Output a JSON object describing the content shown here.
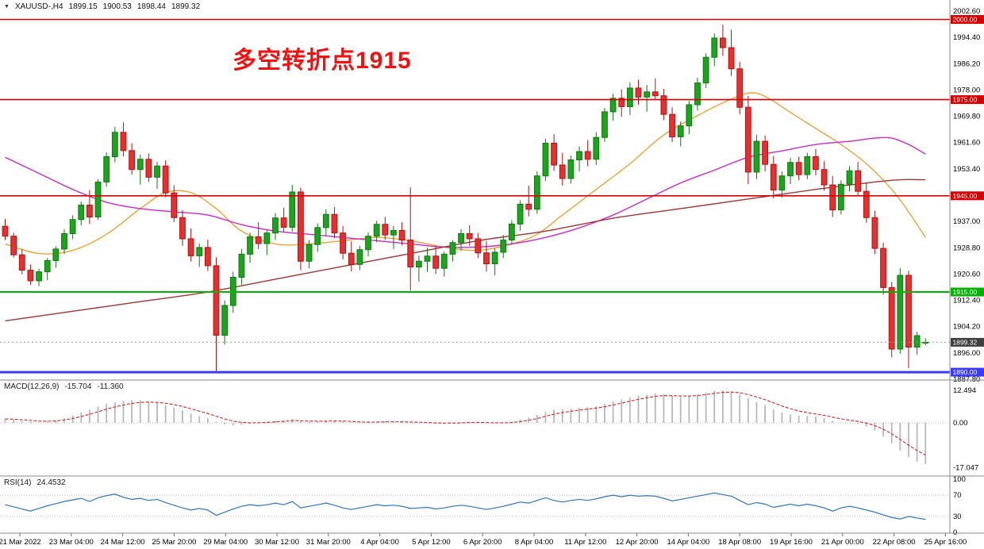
{
  "header": {
    "expander_icon": "▼",
    "symbol_period": "XAUUSD-,H4",
    "open": "1899.15",
    "high": "1900.53",
    "low": "1898.44",
    "close": "1899.32"
  },
  "annotation": {
    "text": "多空转折点1915",
    "color": "#f01212"
  },
  "indicators": {
    "macd": {
      "label": "MACD(12,26,9)",
      "main_value": "-15.704",
      "signal_value": "-11.360"
    },
    "rsi": {
      "label": "RSI(14)",
      "value": "24.4532"
    }
  },
  "chart_data": {
    "type": "candlestick",
    "symbol": "XAUUSD-",
    "timeframe": "H4",
    "ylim": [
      1887.8,
      2002.6
    ],
    "current_price": 1899.32,
    "y_tick_labels": [
      "2002.60",
      "1994.40",
      "1986.20",
      "1978.00",
      "1969.80",
      "1961.60",
      "1953.40",
      "1945.20",
      "1937.00",
      "1928.80",
      "1920.60",
      "1912.40",
      "1904.20",
      "1896.00",
      "1887.80"
    ],
    "x_tick_labels": [
      "21 Mar 2022",
      "23 Mar 04:00",
      "24 Mar 12:00",
      "25 Mar 20:00",
      "29 Mar 04:00",
      "30 Mar 12:00",
      "31 Mar 20:00",
      "4 Apr 04:00",
      "5 Apr 12:00",
      "6 Apr 20:00",
      "8 Apr 04:00",
      "11 Apr 12:00",
      "12 Apr 20:00",
      "14 Apr 04:00",
      "18 Apr 08:00",
      "19 Apr 16:00",
      "21 Apr 00:00",
      "22 Apr 08:00",
      "25 Apr 16:00"
    ],
    "colors": {
      "up": "#1ea31e",
      "up_border": "#0e7a0e",
      "down": "#e63030",
      "down_border": "#b31212",
      "background": "#ffffff"
    },
    "horizontal_lines": [
      {
        "price": 2000.0,
        "color": "#d60000",
        "width": 1.6
      },
      {
        "price": 1975.0,
        "color": "#d60000",
        "width": 1.6
      },
      {
        "price": 1945.0,
        "color": "#d60000",
        "width": 1.6
      },
      {
        "price": 1915.0,
        "color": "#00b300",
        "width": 2
      },
      {
        "price": 1890.0,
        "color": "#3b3bff",
        "width": 3
      }
    ],
    "price_tags": [
      {
        "label": "2000.00",
        "value": 2000.0,
        "type": "resistance",
        "color": "#d60000"
      },
      {
        "label": "1975.00",
        "value": 1975.0,
        "type": "resistance",
        "color": "#d60000"
      },
      {
        "label": "1945.00",
        "value": 1945.0,
        "type": "resistance",
        "color": "#d60000"
      },
      {
        "label": "1915.00",
        "value": 1915.0,
        "type": "pivot",
        "color": "#00b300"
      },
      {
        "label": "1899.32",
        "value": 1899.32,
        "type": "current-price",
        "color": "#3f3f3f"
      },
      {
        "label": "1890.00",
        "value": 1890.0,
        "type": "support",
        "color": "#3b3bff"
      }
    ],
    "candles": [
      [
        1935.5,
        1937.8,
        1931.2,
        1932.4
      ],
      [
        1932.4,
        1933.5,
        1925.8,
        1926.6
      ],
      [
        1926.6,
        1928.4,
        1920.5,
        1921.8
      ],
      [
        1921.8,
        1923.6,
        1917.2,
        1918.5
      ],
      [
        1918.5,
        1922.2,
        1916.8,
        1921.3
      ],
      [
        1921.3,
        1925.6,
        1918.7,
        1924.8
      ],
      [
        1924.8,
        1929.3,
        1922.5,
        1928.4
      ],
      [
        1928.4,
        1934.6,
        1926.8,
        1933.2
      ],
      [
        1933.2,
        1938.9,
        1931.5,
        1937.6
      ],
      [
        1937.6,
        1943.2,
        1935.8,
        1942.1
      ],
      [
        1942.1,
        1946.8,
        1936.2,
        1938.4
      ],
      [
        1938.4,
        1950.2,
        1937.5,
        1949.3
      ],
      [
        1949.3,
        1958.6,
        1947.8,
        1957.2
      ],
      [
        1957.2,
        1966.5,
        1955.4,
        1964.8
      ],
      [
        1964.8,
        1967.9,
        1957.3,
        1959.1
      ],
      [
        1959.1,
        1961.4,
        1951.6,
        1953.2
      ],
      [
        1953.2,
        1957.8,
        1948.5,
        1956.4
      ],
      [
        1956.4,
        1958.2,
        1949.3,
        1950.8
      ],
      [
        1950.8,
        1955.6,
        1947.2,
        1954.3
      ],
      [
        1954.3,
        1956.1,
        1944.6,
        1945.9
      ],
      [
        1945.9,
        1948.3,
        1936.8,
        1938.2
      ],
      [
        1938.2,
        1940.5,
        1929.4,
        1931.6
      ],
      [
        1931.6,
        1934.8,
        1924.5,
        1926.3
      ],
      [
        1926.3,
        1930.2,
        1922.8,
        1928.9
      ],
      [
        1928.9,
        1931.4,
        1921.6,
        1923.2
      ],
      [
        1923.2,
        1925.8,
        1890.2,
        1901.5
      ],
      [
        1901.5,
        1912.4,
        1898.6,
        1910.8
      ],
      [
        1910.8,
        1921.3,
        1908.5,
        1919.6
      ],
      [
        1919.6,
        1928.4,
        1917.2,
        1926.8
      ],
      [
        1926.8,
        1933.5,
        1924.1,
        1932.2
      ],
      [
        1932.2,
        1936.8,
        1928.4,
        1930.1
      ],
      [
        1930.1,
        1934.2,
        1926.5,
        1933.4
      ],
      [
        1933.4,
        1939.6,
        1931.2,
        1938.1
      ],
      [
        1938.1,
        1941.3,
        1933.6,
        1935.2
      ],
      [
        1935.2,
        1948.4,
        1933.8,
        1946.2
      ],
      [
        1946.2,
        1947.5,
        1921.8,
        1924.6
      ],
      [
        1924.6,
        1931.2,
        1922.4,
        1929.8
      ],
      [
        1929.8,
        1936.4,
        1927.5,
        1935.1
      ],
      [
        1935.1,
        1940.8,
        1932.6,
        1939.2
      ],
      [
        1939.2,
        1941.5,
        1931.8,
        1933.4
      ],
      [
        1933.4,
        1935.6,
        1925.2,
        1927.1
      ],
      [
        1927.1,
        1930.8,
        1921.4,
        1923.6
      ],
      [
        1923.6,
        1929.4,
        1921.8,
        1928.2
      ],
      [
        1928.2,
        1933.6,
        1926.1,
        1932.4
      ],
      [
        1932.4,
        1937.2,
        1930.5,
        1936.1
      ],
      [
        1936.1,
        1938.4,
        1931.2,
        1932.8
      ],
      [
        1932.8,
        1935.6,
        1928.4,
        1934.2
      ],
      [
        1934.2,
        1936.8,
        1929.5,
        1931.2
      ],
      [
        1931.2,
        1947.6,
        1915.4,
        1922.8
      ],
      [
        1922.8,
        1926.4,
        1918.2,
        1924.6
      ],
      [
        1924.6,
        1928.8,
        1921.3,
        1926.2
      ],
      [
        1926.2,
        1929.4,
        1920.6,
        1922.4
      ],
      [
        1922.4,
        1927.6,
        1919.8,
        1926.8
      ],
      [
        1926.8,
        1931.2,
        1924.5,
        1930.4
      ],
      [
        1930.4,
        1934.6,
        1927.8,
        1933.2
      ],
      [
        1933.2,
        1935.8,
        1929.4,
        1931.6
      ],
      [
        1931.6,
        1933.4,
        1925.6,
        1927.2
      ],
      [
        1927.2,
        1930.8,
        1921.4,
        1923.8
      ],
      [
        1923.8,
        1928.6,
        1920.2,
        1927.4
      ],
      [
        1927.4,
        1932.8,
        1925.6,
        1931.2
      ],
      [
        1931.2,
        1937.4,
        1929.8,
        1936.2
      ],
      [
        1936.2,
        1943.6,
        1934.1,
        1942.4
      ],
      [
        1942.4,
        1948.2,
        1938.6,
        1940.8
      ],
      [
        1940.8,
        1952.6,
        1939.4,
        1951.2
      ],
      [
        1951.2,
        1962.8,
        1949.6,
        1961.4
      ],
      [
        1961.4,
        1964.2,
        1952.8,
        1954.6
      ],
      [
        1954.6,
        1958.4,
        1948.2,
        1950.4
      ],
      [
        1950.4,
        1957.6,
        1948.8,
        1956.2
      ],
      [
        1956.2,
        1960.4,
        1952.6,
        1958.8
      ],
      [
        1958.8,
        1962.4,
        1954.2,
        1956.4
      ],
      [
        1956.4,
        1964.8,
        1954.6,
        1963.2
      ],
      [
        1963.2,
        1972.4,
        1961.8,
        1971.2
      ],
      [
        1971.2,
        1976.8,
        1968.4,
        1975.4
      ],
      [
        1975.4,
        1978.2,
        1969.6,
        1972.8
      ],
      [
        1972.8,
        1980.4,
        1970.2,
        1978.6
      ],
      [
        1978.6,
        1981.2,
        1973.4,
        1975.8
      ],
      [
        1975.8,
        1979.6,
        1971.2,
        1977.4
      ],
      [
        1977.4,
        1981.6,
        1974.8,
        1976.2
      ],
      [
        1976.2,
        1978.4,
        1968.6,
        1970.4
      ],
      [
        1970.4,
        1972.6,
        1961.8,
        1963.4
      ],
      [
        1963.4,
        1968.2,
        1960.4,
        1966.8
      ],
      [
        1966.8,
        1974.6,
        1964.2,
        1973.4
      ],
      [
        1973.4,
        1981.8,
        1971.6,
        1980.2
      ],
      [
        1980.2,
        1989.4,
        1978.6,
        1988.2
      ],
      [
        1988.2,
        1995.6,
        1985.4,
        1994.2
      ],
      [
        1994.2,
        1998.4,
        1988.6,
        1991.2
      ],
      [
        1991.2,
        1996.8,
        1982.4,
        1984.6
      ],
      [
        1984.6,
        1986.8,
        1970.4,
        1972.6
      ],
      [
        1972.6,
        1976.2,
        1948.6,
        1952.4
      ],
      [
        1952.4,
        1964.0,
        1950.2,
        1962.0
      ],
      [
        1962.0,
        1963.8,
        1952.6,
        1954.8
      ],
      [
        1954.8,
        1957.4,
        1944.2,
        1946.8
      ],
      [
        1946.8,
        1952.6,
        1944.4,
        1951.2
      ],
      [
        1951.2,
        1956.8,
        1948.6,
        1955.4
      ],
      [
        1955.4,
        1957.2,
        1949.8,
        1951.6
      ],
      [
        1951.6,
        1958.4,
        1950.2,
        1957.2
      ],
      [
        1957.2,
        1959.6,
        1951.4,
        1953.2
      ],
      [
        1953.2,
        1955.8,
        1946.6,
        1948.4
      ],
      [
        1948.4,
        1951.2,
        1938.4,
        1940.6
      ],
      [
        1940.6,
        1949.8,
        1939.2,
        1948.6
      ],
      [
        1948.6,
        1954.2,
        1946.4,
        1952.8
      ],
      [
        1952.8,
        1955.6,
        1944.8,
        1946.4
      ],
      [
        1946.4,
        1949.2,
        1936.6,
        1938.2
      ],
      [
        1938.2,
        1940.4,
        1926.8,
        1928.6
      ],
      [
        1928.6,
        1930.4,
        1914.2,
        1916.4
      ],
      [
        1916.4,
        1918.2,
        1894.6,
        1897.2
      ],
      [
        1897.2,
        1922.4,
        1895.8,
        1920.2
      ],
      [
        1920.2,
        1921.6,
        1891.2,
        1897.8
      ],
      [
        1897.8,
        1902.6,
        1895.4,
        1901.4
      ],
      [
        1899.15,
        1900.53,
        1898.44,
        1899.32
      ]
    ],
    "moving_averages": [
      {
        "name": "ma-fast-orange",
        "color": "#eda333",
        "points": [
          [
            0,
            1930
          ],
          [
            4,
            1927
          ],
          [
            8,
            1928
          ],
          [
            12,
            1933
          ],
          [
            16,
            1941
          ],
          [
            19,
            1946
          ],
          [
            22,
            1946
          ],
          [
            25,
            1941
          ],
          [
            28,
            1934
          ],
          [
            32,
            1930
          ],
          [
            36,
            1930
          ],
          [
            40,
            1931
          ],
          [
            44,
            1932
          ],
          [
            48,
            1931
          ],
          [
            52,
            1929
          ],
          [
            56,
            1928
          ],
          [
            60,
            1930
          ],
          [
            63,
            1933
          ],
          [
            66,
            1939
          ],
          [
            70,
            1947
          ],
          [
            74,
            1955
          ],
          [
            78,
            1964
          ],
          [
            82,
            1970
          ],
          [
            85,
            1974
          ],
          [
            88,
            1977
          ],
          [
            90,
            1976
          ],
          [
            93,
            1971
          ],
          [
            96,
            1966
          ],
          [
            99,
            1961
          ],
          [
            102,
            1955
          ],
          [
            105,
            1947
          ],
          [
            107,
            1940
          ],
          [
            109,
            1932
          ]
        ]
      },
      {
        "name": "ma-mid-magenta",
        "color": "#c92ac9",
        "points": [
          [
            0,
            1957
          ],
          [
            4,
            1952
          ],
          [
            8,
            1947
          ],
          [
            12,
            1943
          ],
          [
            16,
            1941
          ],
          [
            20,
            1940
          ],
          [
            24,
            1939
          ],
          [
            28,
            1936
          ],
          [
            32,
            1934
          ],
          [
            36,
            1933
          ],
          [
            40,
            1932
          ],
          [
            44,
            1931
          ],
          [
            48,
            1930
          ],
          [
            52,
            1929
          ],
          [
            56,
            1929
          ],
          [
            60,
            1930
          ],
          [
            64,
            1932
          ],
          [
            68,
            1935
          ],
          [
            72,
            1939
          ],
          [
            76,
            1944
          ],
          [
            80,
            1949
          ],
          [
            84,
            1953
          ],
          [
            88,
            1957
          ],
          [
            92,
            1959
          ],
          [
            96,
            1961
          ],
          [
            100,
            1962
          ],
          [
            103,
            1963
          ],
          [
            105,
            1963
          ],
          [
            107,
            1961
          ],
          [
            109,
            1958
          ]
        ]
      },
      {
        "name": "ma-slow-darkred",
        "color": "#a03535",
        "points": [
          [
            0,
            1906
          ],
          [
            8,
            1909
          ],
          [
            16,
            1912
          ],
          [
            24,
            1915
          ],
          [
            32,
            1919
          ],
          [
            40,
            1923
          ],
          [
            48,
            1927
          ],
          [
            56,
            1931
          ],
          [
            64,
            1934
          ],
          [
            72,
            1938
          ],
          [
            80,
            1941
          ],
          [
            88,
            1944
          ],
          [
            96,
            1947
          ],
          [
            102,
            1949
          ],
          [
            106,
            1950
          ],
          [
            109,
            1950
          ]
        ]
      }
    ],
    "macd": {
      "label": "MACD(12,26,9)",
      "main": -15.704,
      "signal": -11.36,
      "ylim": [
        -17.047,
        12.494
      ],
      "tick_labels": [
        "12.494",
        "0.00",
        "-17.047"
      ],
      "histogram_color": "#b8b8b8",
      "signal_color": "#d42424",
      "values": [
        1.5,
        1.2,
        0.8,
        0.4,
        0.2,
        0.5,
        1.0,
        1.8,
        2.8,
        4.0,
        5.0,
        6.2,
        7.3,
        7.8,
        8.3,
        8.6,
        8.6,
        8.2,
        7.6,
        6.8,
        5.9,
        4.8,
        3.6,
        2.6,
        1.8,
        0.4,
        -0.6,
        -1.0,
        -0.8,
        -0.3,
        0.1,
        0.4,
        0.8,
        1.0,
        1.4,
        0.8,
        0.4,
        0.5,
        0.8,
        0.9,
        0.6,
        0.2,
        0.0,
        0.1,
        0.4,
        0.5,
        0.5,
        0.4,
        0.2,
        0.0,
        -0.1,
        -0.3,
        -0.3,
        -0.1,
        0.2,
        0.4,
        0.3,
        0.0,
        -0.2,
        0.0,
        0.4,
        1.2,
        2.0,
        3.0,
        4.2,
        5.0,
        5.2,
        5.4,
        5.8,
        6.0,
        6.4,
        7.2,
        8.2,
        9.0,
        9.8,
        10.4,
        10.8,
        11.2,
        11.0,
        10.4,
        10.0,
        10.2,
        10.8,
        11.6,
        12.2,
        12.4,
        12.0,
        11.0,
        9.4,
        8.0,
        6.8,
        5.2,
        4.0,
        3.2,
        2.8,
        2.6,
        2.4,
        1.8,
        0.8,
        0.2,
        0.0,
        -0.4,
        -1.4,
        -3.0,
        -5.2,
        -7.8,
        -10.6,
        -13.0,
        -14.8,
        -15.704
      ]
    },
    "rsi": {
      "label": "RSI(14)",
      "value": 24.4532,
      "levels": [
        70,
        30
      ],
      "range": [
        0,
        100
      ],
      "tick_labels": [
        "100",
        "70",
        "30",
        "0"
      ],
      "line_color": "#2e74c0",
      "values": [
        52,
        48,
        44,
        40,
        45,
        50,
        54,
        58,
        61,
        64,
        58,
        65,
        69,
        72,
        66,
        62,
        64,
        60,
        62,
        56,
        51,
        46,
        42,
        45,
        42,
        32,
        38,
        44,
        49,
        52,
        50,
        52,
        55,
        52,
        58,
        46,
        49,
        52,
        55,
        51,
        46,
        43,
        46,
        49,
        52,
        50,
        51,
        49,
        45,
        46,
        47,
        44,
        46,
        49,
        51,
        49,
        46,
        43,
        46,
        49,
        53,
        57,
        55,
        60,
        65,
        60,
        57,
        60,
        62,
        60,
        63,
        67,
        70,
        67,
        70,
        68,
        69,
        68,
        64,
        59,
        62,
        65,
        68,
        71,
        74,
        71,
        68,
        60,
        52,
        56,
        53,
        47,
        50,
        53,
        50,
        53,
        50,
        46,
        40,
        46,
        49,
        46,
        42,
        38,
        33,
        28,
        25,
        30,
        27,
        24.4532
      ]
    }
  }
}
